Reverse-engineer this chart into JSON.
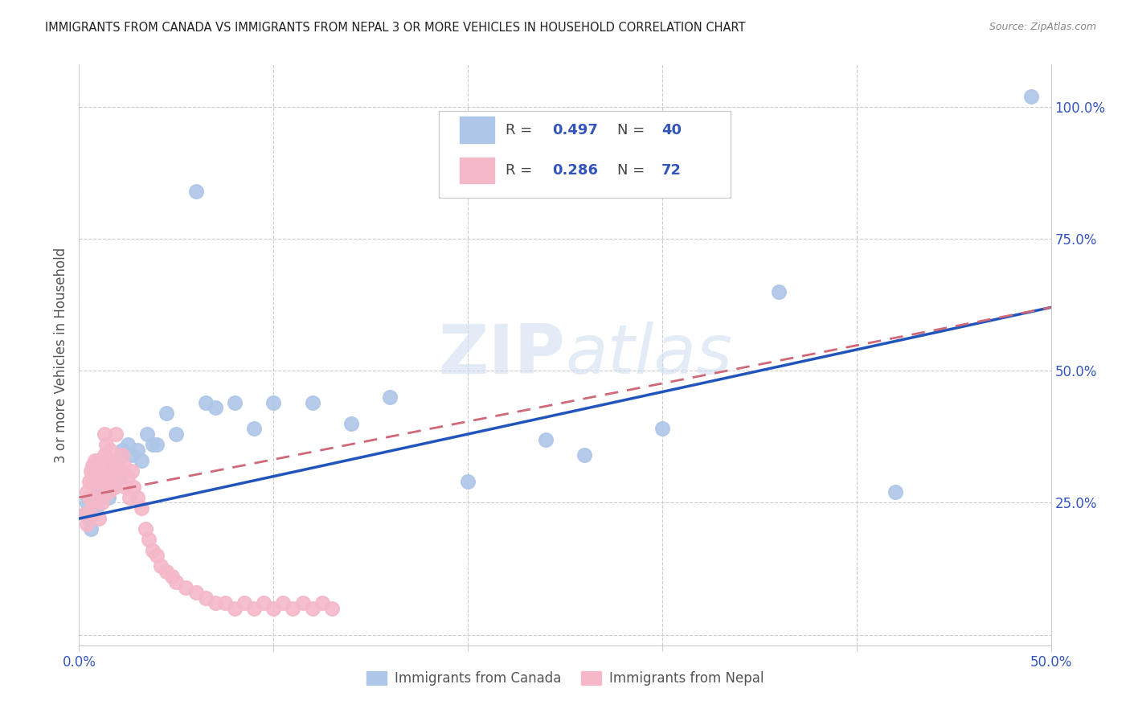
{
  "title": "IMMIGRANTS FROM CANADA VS IMMIGRANTS FROM NEPAL 3 OR MORE VEHICLES IN HOUSEHOLD CORRELATION CHART",
  "source": "Source: ZipAtlas.com",
  "ylabel": "3 or more Vehicles in Household",
  "xlim": [
    0.0,
    0.5
  ],
  "ylim": [
    -0.02,
    1.08
  ],
  "x_ticks": [
    0.0,
    0.1,
    0.2,
    0.3,
    0.4,
    0.5
  ],
  "x_tick_labels": [
    "0.0%",
    "",
    "",
    "",
    "",
    "50.0%"
  ],
  "y_ticks_right": [
    0.0,
    0.25,
    0.5,
    0.75,
    1.0
  ],
  "y_tick_labels_right": [
    "",
    "25.0%",
    "50.0%",
    "75.0%",
    "100.0%"
  ],
  "canada_color": "#aec6e8",
  "nepal_color": "#f4b8c8",
  "canada_line_color": "#2255bb",
  "nepal_line_color": "#d06878",
  "watermark": "ZIPatlas",
  "canada_scatter_x": [
    0.003,
    0.004,
    0.005,
    0.006,
    0.007,
    0.008,
    0.009,
    0.01,
    0.012,
    0.013,
    0.015,
    0.017,
    0.018,
    0.02,
    0.022,
    0.025,
    0.027,
    0.03,
    0.032,
    0.035,
    0.038,
    0.04,
    0.045,
    0.05,
    0.06,
    0.065,
    0.07,
    0.08,
    0.09,
    0.1,
    0.12,
    0.14,
    0.16,
    0.2,
    0.24,
    0.26,
    0.3,
    0.36,
    0.42,
    0.49
  ],
  "canada_scatter_y": [
    0.23,
    0.25,
    0.22,
    0.2,
    0.23,
    0.26,
    0.24,
    0.28,
    0.27,
    0.3,
    0.26,
    0.32,
    0.28,
    0.3,
    0.35,
    0.36,
    0.34,
    0.35,
    0.33,
    0.38,
    0.36,
    0.36,
    0.42,
    0.38,
    0.84,
    0.44,
    0.43,
    0.44,
    0.39,
    0.44,
    0.44,
    0.4,
    0.45,
    0.29,
    0.37,
    0.34,
    0.39,
    0.65,
    0.27,
    1.02
  ],
  "nepal_scatter_x": [
    0.003,
    0.004,
    0.004,
    0.005,
    0.005,
    0.005,
    0.006,
    0.006,
    0.007,
    0.007,
    0.007,
    0.008,
    0.008,
    0.008,
    0.009,
    0.009,
    0.01,
    0.01,
    0.01,
    0.01,
    0.011,
    0.011,
    0.012,
    0.012,
    0.013,
    0.013,
    0.013,
    0.014,
    0.014,
    0.015,
    0.015,
    0.016,
    0.016,
    0.017,
    0.018,
    0.018,
    0.019,
    0.02,
    0.021,
    0.022,
    0.023,
    0.024,
    0.025,
    0.026,
    0.027,
    0.028,
    0.03,
    0.032,
    0.034,
    0.036,
    0.038,
    0.04,
    0.042,
    0.045,
    0.048,
    0.05,
    0.055,
    0.06,
    0.065,
    0.07,
    0.075,
    0.08,
    0.085,
    0.09,
    0.095,
    0.1,
    0.105,
    0.11,
    0.115,
    0.12,
    0.125,
    0.13
  ],
  "nepal_scatter_y": [
    0.23,
    0.21,
    0.27,
    0.26,
    0.23,
    0.29,
    0.31,
    0.26,
    0.25,
    0.29,
    0.32,
    0.25,
    0.3,
    0.33,
    0.26,
    0.31,
    0.22,
    0.26,
    0.3,
    0.33,
    0.28,
    0.32,
    0.25,
    0.29,
    0.34,
    0.3,
    0.38,
    0.31,
    0.36,
    0.27,
    0.33,
    0.29,
    0.35,
    0.31,
    0.28,
    0.33,
    0.38,
    0.32,
    0.3,
    0.34,
    0.32,
    0.28,
    0.3,
    0.26,
    0.31,
    0.28,
    0.26,
    0.24,
    0.2,
    0.18,
    0.16,
    0.15,
    0.13,
    0.12,
    0.11,
    0.1,
    0.09,
    0.08,
    0.07,
    0.06,
    0.06,
    0.05,
    0.06,
    0.05,
    0.06,
    0.05,
    0.06,
    0.05,
    0.06,
    0.05,
    0.06,
    0.05
  ],
  "canada_line_x": [
    0.0,
    0.5
  ],
  "canada_line_y": [
    0.22,
    0.62
  ],
  "nepal_line_x": [
    0.0,
    0.5
  ],
  "nepal_line_y": [
    0.26,
    0.62
  ]
}
